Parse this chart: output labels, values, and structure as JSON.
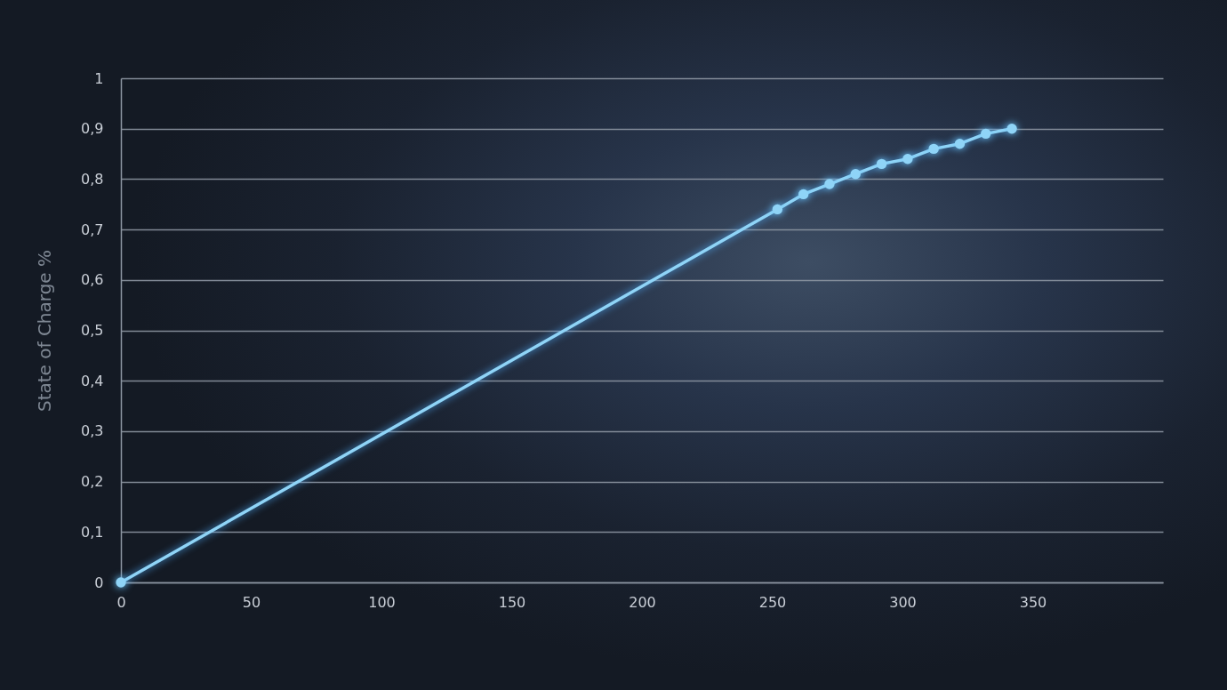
{
  "chart_data": {
    "type": "line",
    "ylabel": "State of Charge %",
    "x": [
      0,
      252,
      262,
      272,
      282,
      292,
      302,
      312,
      322,
      332,
      342
    ],
    "series": [
      {
        "color": "#8fd4f7",
        "values": [
          0,
          0.74,
          0.77,
          0.79,
          0.81,
          0.83,
          0.84,
          0.86,
          0.87,
          0.89,
          0.9
        ]
      }
    ],
    "xlim": [
      0,
      400
    ],
    "xticks": [
      0,
      50,
      100,
      150,
      200,
      250,
      300,
      350
    ],
    "ylim": [
      0,
      1
    ],
    "yticks": [
      0,
      {
        "value": 0.1,
        "label": "0,1"
      },
      {
        "value": 0.2,
        "label": "0,2"
      },
      {
        "value": 0.3,
        "label": "0,3"
      },
      {
        "value": 0.4,
        "label": "0,4"
      },
      {
        "value": 0.5,
        "label": "0,5"
      },
      {
        "value": 0.6,
        "label": "0,6"
      },
      {
        "value": 0.7,
        "label": "0,7"
      },
      {
        "value": 0.8,
        "label": "0,8"
      },
      {
        "value": 0.9,
        "label": "0,9"
      },
      1
    ],
    "grid": "y",
    "marker": "circle",
    "line_style": "solid"
  }
}
